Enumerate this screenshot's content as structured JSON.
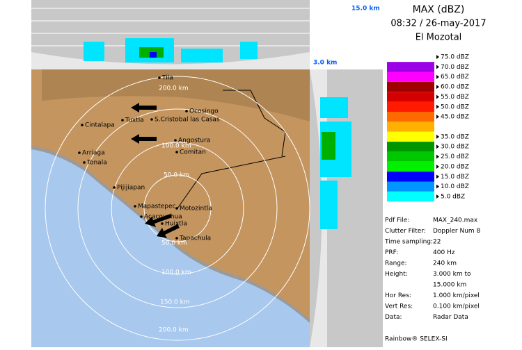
{
  "header": {
    "top_height": "15.0 km",
    "side_height": "3.0 km",
    "title": "MAX (dBZ)",
    "datetime": "08:32 / 26-may-2017",
    "site": "El Mozotal"
  },
  "legend": [
    {
      "label": "75.0 dBZ",
      "color": "#ffffff"
    },
    {
      "label": "70.0 dBZ",
      "color": "#9b00e6"
    },
    {
      "label": "65.0 dBZ",
      "color": "#ff00ff"
    },
    {
      "label": "60.0 dBZ",
      "color": "#a00000"
    },
    {
      "label": "55.0 dBZ",
      "color": "#d40000"
    },
    {
      "label": "50.0 dBZ",
      "color": "#ff1a00"
    },
    {
      "label": "45.0 dBZ",
      "color": "#ff6a00"
    },
    {
      "label": null,
      "color": "#ffb000"
    },
    {
      "label": "35.0 dBZ",
      "color": "#ffff00"
    },
    {
      "label": "30.0 dBZ",
      "color": "#009600"
    },
    {
      "label": "25.0 dBZ",
      "color": "#00c800"
    },
    {
      "label": "20.0 dBZ",
      "color": "#00f000"
    },
    {
      "label": "15.0 dBZ",
      "color": "#0000ff"
    },
    {
      "label": "10.0 dBZ",
      "color": "#0096ff"
    },
    {
      "label": "5.0 dBZ",
      "color": "#00ffff"
    }
  ],
  "info": [
    [
      "Pdf File:",
      "MAX_240.max"
    ],
    [
      "Clutter Filter:",
      "Doppler Num 8"
    ],
    [
      "Time sampling:",
      "22"
    ],
    [
      "PRF:",
      "400 Hz"
    ],
    [
      "Range:",
      "240 km"
    ],
    [
      "Height:",
      "3.000 km to"
    ],
    [
      "",
      "15.000 km"
    ],
    [
      "Hor Res:",
      "1.000 km/pixel"
    ],
    [
      "Vert Res:",
      "0.100 km/pixel"
    ],
    [
      "Data:",
      "Radar Data"
    ]
  ],
  "footer": "Rainbow® SELEX-SI",
  "range_labels": [
    "200.0 km",
    "100.0 km",
    "50.0 km",
    "50.0 km",
    "100.0 km",
    "150.0 km",
    "200.0 km"
  ],
  "cities": [
    "Tila",
    "Ocosingo",
    "Cintalapa",
    "Tuxtla",
    "S.Cristobal las Casas",
    "Angostura",
    "Comitan",
    "Arriaga",
    "Tonala",
    "Pijijiapan",
    "Mapastepec",
    "Motozintla",
    "Acacoyahua",
    "Huixtla",
    "Tapachula"
  ]
}
